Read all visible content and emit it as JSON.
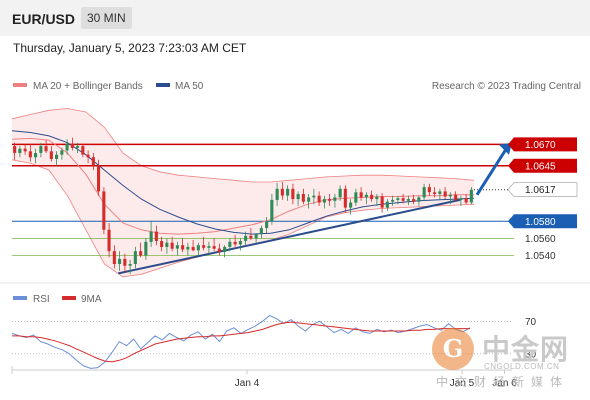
{
  "header": {
    "symbol": "EUR/USD",
    "timeframe": "30 MIN"
  },
  "timestamp": "Thursday, January 5, 2023 7:23:03 AM CET",
  "legend": {
    "bollinger": "MA 20 + Bollinger Bands",
    "ma50": "MA 50",
    "rsi": "RSI",
    "rsi_ma": "9MA",
    "credit": "Research © 2023 Trading Central"
  },
  "colors": {
    "resistance": "#cc0000",
    "support_blue": "#1a5fb4",
    "support_green": "#7ab648",
    "bollinger": "#f08080",
    "ma50": "#2b4c8c",
    "up": "#2e8b57",
    "down": "#d62b2b",
    "rsi": "#6b8fd6",
    "rsi_ma": "#d62b2b",
    "arrow": "#1a5fb4"
  },
  "chart_data": [
    {
      "type": "candlestick",
      "instrument": "EUR/USD",
      "interval": "30 MIN",
      "x_ticks": [
        "Jan 4",
        "Jan 5",
        "Jan 6"
      ],
      "ylim": [
        1.0523,
        1.0722
      ],
      "levels": [
        {
          "value": 1.067,
          "label": "1.0670",
          "kind": "resistance"
        },
        {
          "value": 1.0645,
          "label": "1.0645",
          "kind": "resistance"
        },
        {
          "value": 1.0617,
          "label": "1.0617",
          "kind": "current"
        },
        {
          "value": 1.058,
          "label": "1.0580",
          "kind": "pivot"
        },
        {
          "value": 1.056,
          "label": "1.0560",
          "kind": "support"
        },
        {
          "value": 1.054,
          "label": "1.0540",
          "kind": "support"
        }
      ],
      "trendline": {
        "from_bar": 0.23,
        "from_price": 1.0519,
        "to_bar": 0.97,
        "to_price": 1.0605
      },
      "forecast_arrow": {
        "from_price": 1.0611,
        "to_price": 1.0672
      },
      "candles": [
        [
          1.0668,
          1.0672,
          1.0652,
          1.066
        ],
        [
          1.066,
          1.0668,
          1.0655,
          1.0665
        ],
        [
          1.0665,
          1.067,
          1.0658,
          1.0662
        ],
        [
          1.0662,
          1.067,
          1.065,
          1.0655
        ],
        [
          1.0655,
          1.0665,
          1.0648,
          1.066
        ],
        [
          1.066,
          1.0672,
          1.0655,
          1.0668
        ],
        [
          1.0668,
          1.0675,
          1.066,
          1.0662
        ],
        [
          1.0662,
          1.0668,
          1.065,
          1.0653
        ],
        [
          1.0653,
          1.0662,
          1.0645,
          1.0658
        ],
        [
          1.0658,
          1.0666,
          1.0652,
          1.0663
        ],
        [
          1.0663,
          1.0676,
          1.0658,
          1.0671
        ],
        [
          1.0671,
          1.0678,
          1.0663,
          1.0666
        ],
        [
          1.0666,
          1.0672,
          1.066,
          1.0668
        ],
        [
          1.0668,
          1.067,
          1.0655,
          1.0658
        ],
        [
          1.0658,
          1.0663,
          1.0648,
          1.0655
        ],
        [
          1.0655,
          1.066,
          1.064,
          1.0645
        ],
        [
          1.0645,
          1.0652,
          1.061,
          1.0615
        ],
        [
          1.0615,
          1.062,
          1.0565,
          1.057
        ],
        [
          1.057,
          1.0578,
          1.0538,
          1.0545
        ],
        [
          1.0545,
          1.0552,
          1.0525,
          1.053
        ],
        [
          1.053,
          1.0545,
          1.0522,
          1.0536
        ],
        [
          1.0536,
          1.0542,
          1.052,
          1.0528
        ],
        [
          1.0528,
          1.0535,
          1.0518,
          1.053
        ],
        [
          1.053,
          1.055,
          1.0525,
          1.0545
        ],
        [
          1.0545,
          1.0555,
          1.0538,
          1.054
        ],
        [
          1.054,
          1.056,
          1.0535,
          1.0556
        ],
        [
          1.0556,
          1.058,
          1.055,
          1.0568
        ],
        [
          1.0568,
          1.0575,
          1.0552,
          1.0557
        ],
        [
          1.0557,
          1.0562,
          1.0545,
          1.055
        ],
        [
          1.055,
          1.056,
          1.0542,
          1.0555
        ],
        [
          1.0555,
          1.0562,
          1.0545,
          1.0548
        ],
        [
          1.0548,
          1.0556,
          1.054,
          1.0552
        ],
        [
          1.0552,
          1.056,
          1.0544,
          1.0547
        ],
        [
          1.0547,
          1.0555,
          1.054,
          1.055
        ],
        [
          1.055,
          1.0558,
          1.0545,
          1.0546
        ],
        [
          1.0546,
          1.0555,
          1.054,
          1.0552
        ],
        [
          1.0552,
          1.0562,
          1.0546,
          1.0549
        ],
        [
          1.0549,
          1.0556,
          1.0542,
          1.0551
        ],
        [
          1.0551,
          1.056,
          1.0545,
          1.0548
        ],
        [
          1.0548,
          1.0554,
          1.054,
          1.0544
        ],
        [
          1.0544,
          1.0552,
          1.0538,
          1.055
        ],
        [
          1.055,
          1.056,
          1.0545,
          1.0556
        ],
        [
          1.0556,
          1.0564,
          1.055,
          1.0553
        ],
        [
          1.0553,
          1.056,
          1.0546,
          1.0557
        ],
        [
          1.0557,
          1.0568,
          1.0552,
          1.0563
        ],
        [
          1.0563,
          1.0572,
          1.0558,
          1.056
        ],
        [
          1.056,
          1.0566,
          1.0555,
          1.0565
        ],
        [
          1.0565,
          1.0575,
          1.056,
          1.0572
        ],
        [
          1.0572,
          1.0585,
          1.0566,
          1.058
        ],
        [
          1.058,
          1.0612,
          1.0576,
          1.0605
        ],
        [
          1.0605,
          1.0625,
          1.0598,
          1.0618
        ],
        [
          1.0618,
          1.0626,
          1.0605,
          1.061
        ],
        [
          1.061,
          1.0622,
          1.0604,
          1.0618
        ],
        [
          1.0618,
          1.0624,
          1.06,
          1.0606
        ],
        [
          1.0606,
          1.0615,
          1.0598,
          1.0612
        ],
        [
          1.0612,
          1.0618,
          1.06,
          1.0603
        ],
        [
          1.0603,
          1.0612,
          1.0595,
          1.0608
        ],
        [
          1.0608,
          1.0618,
          1.06,
          1.061
        ],
        [
          1.061,
          1.0615,
          1.0598,
          1.0602
        ],
        [
          1.0602,
          1.061,
          1.0595,
          1.0606
        ],
        [
          1.0606,
          1.0612,
          1.0598,
          1.0604
        ],
        [
          1.0604,
          1.0612,
          1.0596,
          1.0608
        ],
        [
          1.0608,
          1.0622,
          1.0604,
          1.0618
        ],
        [
          1.0618,
          1.0622,
          1.059,
          1.0596
        ],
        [
          1.0596,
          1.0606,
          1.0588,
          1.0602
        ],
        [
          1.0602,
          1.0618,
          1.0598,
          1.0614
        ],
        [
          1.0614,
          1.062,
          1.0604,
          1.0608
        ],
        [
          1.0608,
          1.0614,
          1.06,
          1.0611
        ],
        [
          1.0611,
          1.0616,
          1.0603,
          1.0606
        ],
        [
          1.0606,
          1.0612,
          1.0598,
          1.0609
        ],
        [
          1.0609,
          1.0613,
          1.059,
          1.0596
        ],
        [
          1.0596,
          1.0606,
          1.0592,
          1.0603
        ],
        [
          1.0603,
          1.061,
          1.0598,
          1.0605
        ],
        [
          1.0605,
          1.061,
          1.06,
          1.0607
        ],
        [
          1.0607,
          1.0612,
          1.0601,
          1.0604
        ],
        [
          1.0604,
          1.061,
          1.0599,
          1.0606
        ],
        [
          1.0606,
          1.0611,
          1.06,
          1.0603
        ],
        [
          1.0603,
          1.061,
          1.0598,
          1.0608
        ],
        [
          1.0608,
          1.0624,
          1.0604,
          1.062
        ],
        [
          1.062,
          1.0624,
          1.061,
          1.0614
        ],
        [
          1.0614,
          1.062,
          1.0608,
          1.0612
        ],
        [
          1.0612,
          1.0618,
          1.0606,
          1.0615
        ],
        [
          1.0615,
          1.062,
          1.0606,
          1.0609
        ],
        [
          1.0609,
          1.0614,
          1.06,
          1.0611
        ],
        [
          1.0611,
          1.0615,
          1.0603,
          1.0605
        ],
        [
          1.0605,
          1.061,
          1.0598,
          1.0607
        ],
        [
          1.0607,
          1.0612,
          1.06,
          1.0602
        ],
        [
          1.0602,
          1.062,
          1.06,
          1.0617
        ]
      ],
      "bollinger_upper": [
        1.07,
        1.0705,
        1.071,
        1.0712,
        1.0708,
        1.069,
        1.066,
        1.0645,
        1.0638,
        1.0634,
        1.0632,
        1.063,
        1.0628,
        1.0626,
        1.0626,
        1.0628,
        1.063,
        1.0632,
        1.0633,
        1.0634,
        1.0634,
        1.0633,
        1.0632,
        1.0631,
        1.063,
        1.0628
      ],
      "bollinger_lower": [
        1.0652,
        1.0648,
        1.064,
        1.061,
        1.057,
        1.053,
        1.0515,
        1.0518,
        1.0525,
        1.0532,
        1.0538,
        1.0543,
        1.0548,
        1.0553,
        1.0558,
        1.0565,
        1.0575,
        1.0585,
        1.059,
        1.0593,
        1.0595,
        1.0596,
        1.0597,
        1.0598,
        1.0599,
        1.06
      ],
      "ma20": [
        1.0676,
        1.0677,
        1.0675,
        1.066,
        1.0635,
        1.06,
        1.0578,
        1.057,
        1.0566,
        1.0565,
        1.0566,
        1.0568,
        1.0572,
        1.0576,
        1.0582,
        1.0592,
        1.06,
        1.0605,
        1.0607,
        1.0608,
        1.0609,
        1.0609,
        1.061,
        1.061,
        1.0611,
        1.0611
      ],
      "ma50": [
        1.0686,
        1.0684,
        1.068,
        1.0672,
        1.0658,
        1.064,
        1.0622,
        1.0606,
        1.0594,
        1.0585,
        1.0577,
        1.0571,
        1.0567,
        1.0565,
        1.0566,
        1.057,
        1.0578,
        1.0586,
        1.0592,
        1.0597,
        1.06,
        1.0602,
        1.0604,
        1.0605,
        1.0606,
        1.0607
      ]
    },
    {
      "type": "line",
      "name": "RSI panel",
      "y_ticks": [
        "70",
        "30"
      ],
      "ylim": [
        10,
        90
      ],
      "series": [
        {
          "name": "RSI",
          "values": [
            55,
            52,
            50,
            53,
            45,
            42,
            38,
            35,
            30,
            22,
            15,
            12,
            13,
            20,
            32,
            45,
            40,
            48,
            36,
            44,
            52,
            47,
            55,
            50,
            46,
            53,
            57,
            48,
            54,
            45,
            58,
            62,
            55,
            60,
            64,
            70,
            77,
            73,
            67,
            72,
            64,
            58,
            66,
            70,
            63,
            56,
            60,
            55,
            62,
            57,
            55,
            60,
            57,
            59,
            56,
            58,
            61,
            64,
            66,
            62,
            59,
            67,
            60,
            57,
            62
          ]
        },
        {
          "name": "9MA",
          "values": [
            52,
            52,
            51,
            51,
            50,
            48,
            46,
            43,
            40,
            36,
            32,
            28,
            24,
            21,
            20,
            22,
            25,
            30,
            34,
            38,
            42,
            44,
            46,
            48,
            49,
            50,
            51,
            51,
            52,
            52,
            53,
            54,
            55,
            56,
            58,
            60,
            63,
            66,
            68,
            69,
            68,
            67,
            66,
            65,
            64,
            63,
            62,
            61,
            60,
            59,
            58,
            58,
            58,
            58,
            58,
            58,
            59,
            59,
            60,
            60,
            61,
            61,
            61,
            61,
            61
          ]
        }
      ]
    }
  ]
}
